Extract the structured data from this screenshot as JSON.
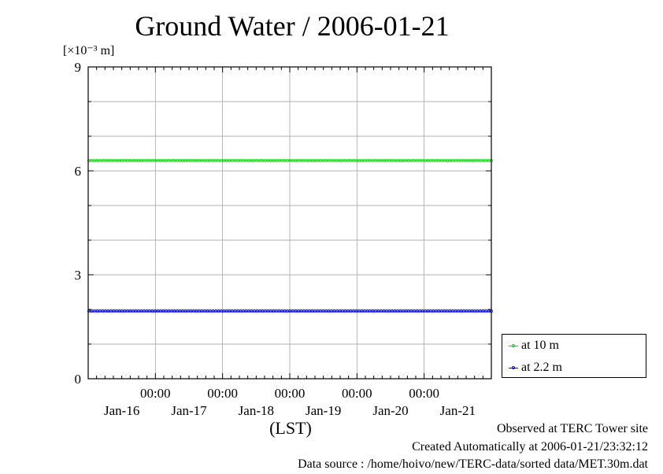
{
  "chart_data": {
    "type": "line",
    "title": "Ground Water / 2006-01-21",
    "ylabel": "[×10⁻³ m]",
    "xlabel": "(LST)",
    "ylim": [
      0,
      9
    ],
    "y_ticks": [
      0,
      3,
      6,
      9
    ],
    "x_tick_time_label": "00:00",
    "x_tick_date_labels": [
      "Jan-16",
      "Jan-17",
      "Jan-18",
      "Jan-19",
      "Jan-20",
      "Jan-21"
    ],
    "x_start_day": 15,
    "x_end_day": 21,
    "grid": true,
    "legend_position": "bottom-right",
    "series": [
      {
        "name": "at 10 m",
        "color": "#00dd00",
        "value": 6.3
      },
      {
        "name": "at 2.2 m",
        "color": "#0000ee",
        "value": 1.95
      }
    ]
  },
  "footnotes": {
    "observed": "Observed at TERC Tower site",
    "created": "Created Automatically at 2006-01-21/23:32:12",
    "source": "Data source : /home/hoivo/new/TERC-data/sorted  data/MET.30m.dat"
  }
}
